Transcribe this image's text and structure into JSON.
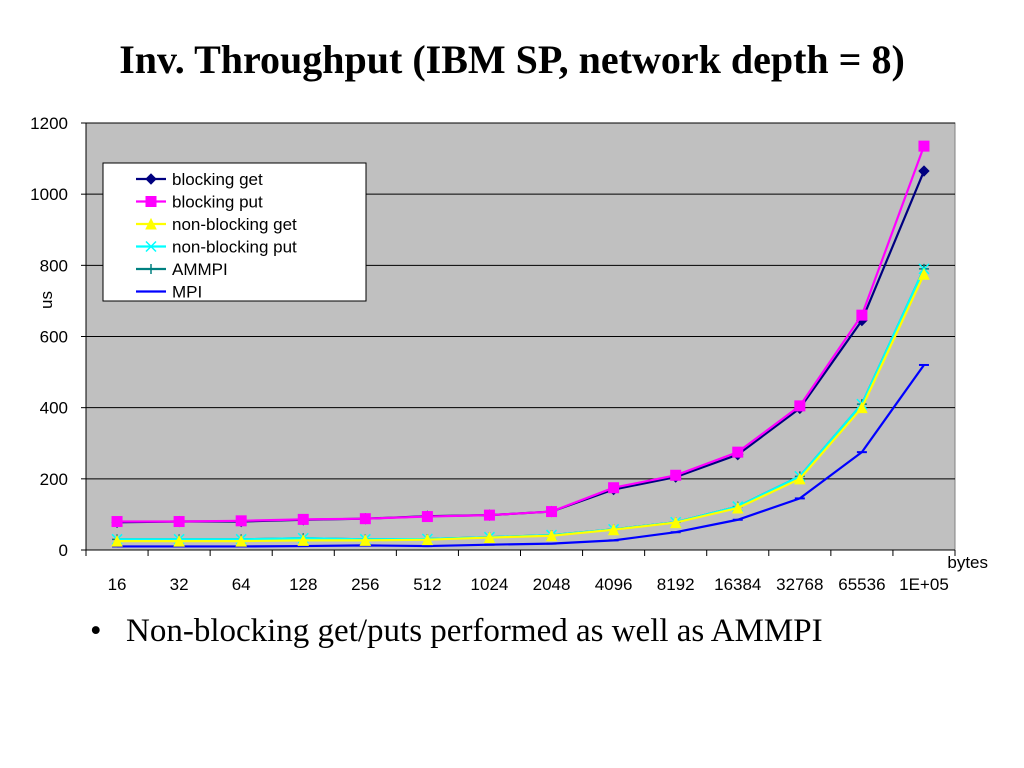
{
  "slide": {
    "title": "Inv. Throughput (IBM SP, network depth = 8)",
    "bullet_symbol": "•",
    "bullet_text": "Non-blocking get/puts performed as well as AMMPI"
  },
  "chart_data": {
    "type": "line",
    "title": "",
    "ylabel": "us",
    "xlabel": "bytes",
    "ylim": [
      0,
      1200
    ],
    "yticks": [
      0,
      200,
      400,
      600,
      800,
      1000,
      1200
    ],
    "categories": [
      "16",
      "32",
      "64",
      "128",
      "256",
      "512",
      "1024",
      "2048",
      "4096",
      "8192",
      "16384",
      "32768",
      "65536",
      "1E+05"
    ],
    "grid": true,
    "legend_position": "top-left",
    "plot_background": "#c0c0c0",
    "series": [
      {
        "name": "blocking get",
        "color": "#000080",
        "marker": "diamond",
        "values": [
          78,
          80,
          80,
          85,
          88,
          95,
          98,
          108,
          170,
          205,
          268,
          398,
          645,
          1065
        ]
      },
      {
        "name": "blocking put",
        "color": "#ff00ff",
        "marker": "square",
        "values": [
          80,
          80,
          82,
          86,
          88,
          94,
          98,
          108,
          175,
          210,
          275,
          405,
          660,
          1135
        ]
      },
      {
        "name": "non-blocking get",
        "color": "#ffff00",
        "marker": "triangle",
        "values": [
          25,
          25,
          25,
          27,
          27,
          29,
          35,
          40,
          57,
          77,
          118,
          200,
          400,
          775
        ]
      },
      {
        "name": "non-blocking put",
        "color": "#00ffff",
        "marker": "x",
        "values": [
          30,
          30,
          30,
          33,
          30,
          31,
          36,
          42,
          58,
          78,
          122,
          207,
          410,
          790
        ]
      },
      {
        "name": "AMMPI",
        "color": "#008080",
        "marker": "plus",
        "values": [
          30,
          30,
          30,
          33,
          30,
          31,
          36,
          42,
          58,
          78,
          122,
          207,
          410,
          790
        ]
      },
      {
        "name": "MPI",
        "color": "#0000ff",
        "marker": "dash",
        "values": [
          10,
          10,
          10,
          11,
          13,
          11,
          15,
          18,
          27,
          50,
          85,
          145,
          275,
          520
        ]
      }
    ]
  }
}
